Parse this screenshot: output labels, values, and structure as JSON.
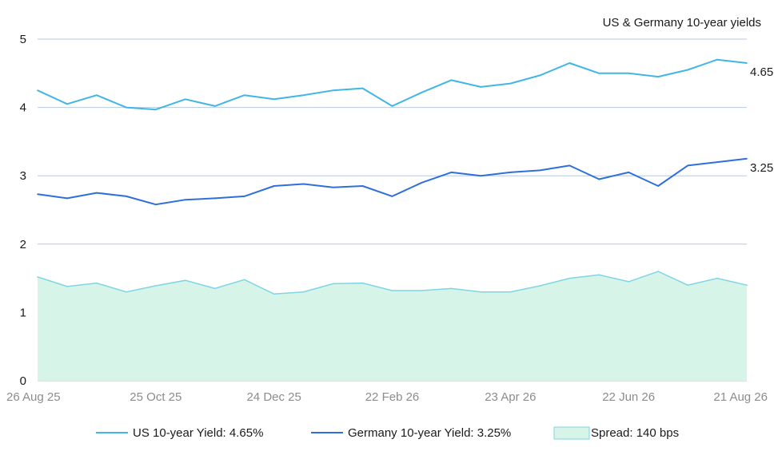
{
  "chart_data": {
    "type": "line",
    "title": "US & Germany 10-year yields",
    "x_tick_labels": [
      "26 Aug 25",
      "25 Oct 25",
      "24 Dec 25",
      "22 Feb 26",
      "23 Apr 26",
      "22 Jun 26",
      "21 Aug 26"
    ],
    "x_range": [
      "26 Aug 25",
      "21 Aug 26"
    ],
    "y_ticks": [
      0,
      1,
      2,
      3,
      4,
      5
    ],
    "ylim": [
      0,
      5
    ],
    "grid": "horizontal",
    "legend_position": "bottom",
    "x": [
      "26 Aug 25",
      "10 Sep 25",
      "25 Sep 25",
      "10 Oct 25",
      "25 Oct 25",
      "9 Nov 25",
      "24 Nov 25",
      "9 Dec 25",
      "24 Dec 25",
      "8 Jan 26",
      "23 Jan 26",
      "7 Feb 26",
      "22 Feb 26",
      "9 Mar 26",
      "24 Mar 26",
      "8 Apr 26",
      "23 Apr 26",
      "8 May 26",
      "23 May 26",
      "7 Jun 26",
      "22 Jun 26",
      "7 Jul 26",
      "22 Jul 26",
      "6 Aug 26",
      "21 Aug 26"
    ],
    "series": [
      {
        "name": "US 10-year Yield: 4.65%",
        "kind": "line",
        "color": "#41b6e6",
        "end_label": "4.65",
        "values": [
          4.25,
          4.05,
          4.18,
          4.0,
          3.97,
          4.12,
          4.02,
          4.18,
          4.12,
          4.18,
          4.25,
          4.28,
          4.02,
          4.22,
          4.4,
          4.3,
          4.35,
          4.47,
          4.65,
          4.5,
          4.5,
          4.45,
          4.55,
          4.7,
          4.65
        ]
      },
      {
        "name": "Germany 10-year Yield: 3.25%",
        "kind": "line",
        "color": "#2f6fdb",
        "end_label": "3.25",
        "values": [
          2.73,
          2.67,
          2.75,
          2.7,
          2.58,
          2.65,
          2.67,
          2.7,
          2.85,
          2.88,
          2.83,
          2.85,
          2.7,
          2.9,
          3.05,
          3.0,
          3.05,
          3.08,
          3.15,
          2.95,
          3.05,
          2.85,
          3.15,
          3.2,
          3.25
        ]
      },
      {
        "name": "Spread: 140 bps",
        "kind": "area",
        "color": "#7fd4e6",
        "fill": "#d6f5e8",
        "values": [
          1.52,
          1.38,
          1.43,
          1.3,
          1.39,
          1.47,
          1.35,
          1.48,
          1.27,
          1.3,
          1.42,
          1.43,
          1.32,
          1.32,
          1.35,
          1.3,
          1.3,
          1.39,
          1.5,
          1.55,
          1.45,
          1.6,
          1.4,
          1.5,
          1.4
        ]
      }
    ]
  }
}
